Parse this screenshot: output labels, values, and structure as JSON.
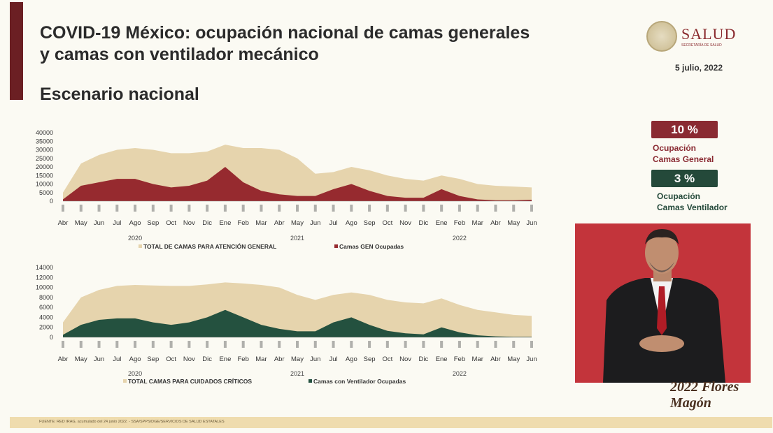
{
  "header": {
    "title": "COVID-19 México: ocupación nacional de camas generales y camas con ventilador mecánico",
    "subtitle": "Escenario nacional",
    "logo_text": "SALUD",
    "logo_subtext": "SECRETARÍA DE SALUD",
    "date": "5 julio, 2022"
  },
  "indicators": [
    {
      "value": "10 %",
      "label_line1": "Ocupación",
      "label_line2": "Camas General",
      "color": "#8a2a32"
    },
    {
      "value": "3 %",
      "label_line1": "Ocupación",
      "label_line2": "Camas Ventilador",
      "color": "#24493a"
    }
  ],
  "footer": {
    "source": "FUENTE: RED IRAG, acumulado del 24 junio 2022. - SSA/SPPS/DGE/SERVICIOS DE SALUD ESTATALES"
  },
  "brand": {
    "text": "2022 Flores Magón"
  },
  "colors": {
    "total": "#e6d4ad",
    "occupied_general": "#962a2f",
    "occupied_vent": "#24513f"
  },
  "chart_data": [
    {
      "type": "area",
      "months": [
        "Abr",
        "May",
        "Jun",
        "Jul",
        "Ago",
        "Sep",
        "Oct",
        "Nov",
        "Dic",
        "Ene",
        "Feb",
        "Mar",
        "Abr",
        "May",
        "Jun",
        "Jul",
        "Ago",
        "Sep",
        "Oct",
        "Nov",
        "Dic",
        "Ene",
        "Feb",
        "Mar",
        "Abr",
        "May",
        "Jun"
      ],
      "years": [
        {
          "label": "2020",
          "month_index": 4
        },
        {
          "label": "2021",
          "month_index": 13
        },
        {
          "label": "2022",
          "month_index": 22
        }
      ],
      "ylim": [
        0,
        40000
      ],
      "yticks": [
        "0",
        "5000",
        "10000",
        "15000",
        "20000",
        "25000",
        "30000",
        "35000",
        "40000"
      ],
      "series": [
        {
          "name": "TOTAL DE CAMAS PARA ATENCIÓN GENERAL",
          "values": [
            5000,
            22000,
            27000,
            30000,
            31000,
            30000,
            28000,
            28000,
            29000,
            33000,
            31000,
            31000,
            30000,
            25000,
            16000,
            17000,
            20000,
            18000,
            15000,
            13000,
            12000,
            15000,
            13000,
            10000,
            9000,
            8500,
            8000
          ]
        },
        {
          "name": "Camas GEN Ocupadas",
          "values": [
            1000,
            9000,
            11000,
            13000,
            13000,
            10000,
            8000,
            9000,
            12000,
            20000,
            11000,
            6000,
            4000,
            3000,
            3000,
            7000,
            10000,
            6000,
            3000,
            2000,
            2000,
            7000,
            3000,
            1000,
            500,
            500,
            800
          ]
        }
      ]
    },
    {
      "type": "area",
      "months": [
        "Abr",
        "May",
        "Jun",
        "Jul",
        "Ago",
        "Sep",
        "Oct",
        "Nov",
        "Dic",
        "Ene",
        "Feb",
        "Mar",
        "Abr",
        "May",
        "Jun",
        "Jul",
        "Ago",
        "Sep",
        "Oct",
        "Nov",
        "Dic",
        "Ene",
        "Feb",
        "Mar",
        "Abr",
        "May",
        "Jun"
      ],
      "years": [
        {
          "label": "2020",
          "month_index": 4
        },
        {
          "label": "2021",
          "month_index": 13
        },
        {
          "label": "2022",
          "month_index": 22
        }
      ],
      "ylim": [
        0,
        14000
      ],
      "yticks": [
        "0",
        "2000",
        "4000",
        "6000",
        "8000",
        "10000",
        "12000",
        "14000"
      ],
      "series": [
        {
          "name": "TOTAL CAMAS PARA CUIDADOS CRÍTICOS",
          "values": [
            3000,
            8000,
            9500,
            10300,
            10500,
            10400,
            10300,
            10300,
            10600,
            11000,
            10800,
            10500,
            10000,
            8500,
            7500,
            8500,
            9000,
            8500,
            7500,
            7000,
            6800,
            7800,
            6500,
            5500,
            5000,
            4500,
            4300
          ]
        },
        {
          "name": "Camas con Ventilador Ocupadas",
          "values": [
            500,
            2500,
            3500,
            3800,
            3800,
            3000,
            2500,
            3000,
            4000,
            5500,
            4000,
            2500,
            1700,
            1200,
            1200,
            3000,
            4000,
            2500,
            1300,
            800,
            600,
            2000,
            1000,
            400,
            200,
            100,
            100
          ]
        }
      ]
    }
  ]
}
